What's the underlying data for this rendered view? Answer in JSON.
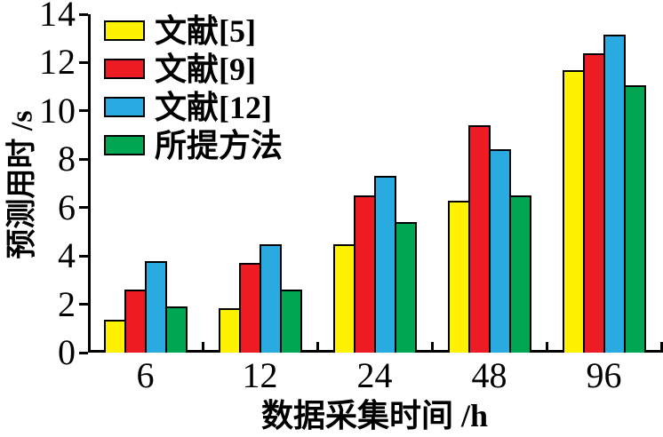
{
  "figure": {
    "background_color": "#FFFFFF",
    "axis_color": "#000000",
    "text_color": "#000000"
  },
  "chart_data": {
    "type": "bar",
    "title": "",
    "xlabel": "数据采集时间 /h",
    "ylabel": "预测用时 /s",
    "categories": [
      "6",
      "12",
      "24",
      "48",
      "96"
    ],
    "series": [
      {
        "name": "文献[5]",
        "color": "#FFF200",
        "values": [
          1.35,
          1.85,
          4.5,
          6.3,
          11.7
        ]
      },
      {
        "name": "文献[9]",
        "color": "#ED1C24",
        "values": [
          2.6,
          3.7,
          6.5,
          9.4,
          12.4
        ]
      },
      {
        "name": "文献[12]",
        "color": "#29ABE2",
        "values": [
          3.8,
          4.5,
          7.3,
          8.4,
          13.15
        ]
      },
      {
        "name": "所提方法",
        "color": "#00A651",
        "values": [
          1.9,
          2.6,
          5.4,
          6.5,
          11.05
        ]
      }
    ],
    "ylim": [
      0,
      14
    ],
    "ytick_step": 2,
    "yticks": [
      0,
      2,
      4,
      6,
      8,
      10,
      12,
      14
    ],
    "grid": false,
    "legend_position": "top-left",
    "bar_outline_color": "#000000"
  }
}
